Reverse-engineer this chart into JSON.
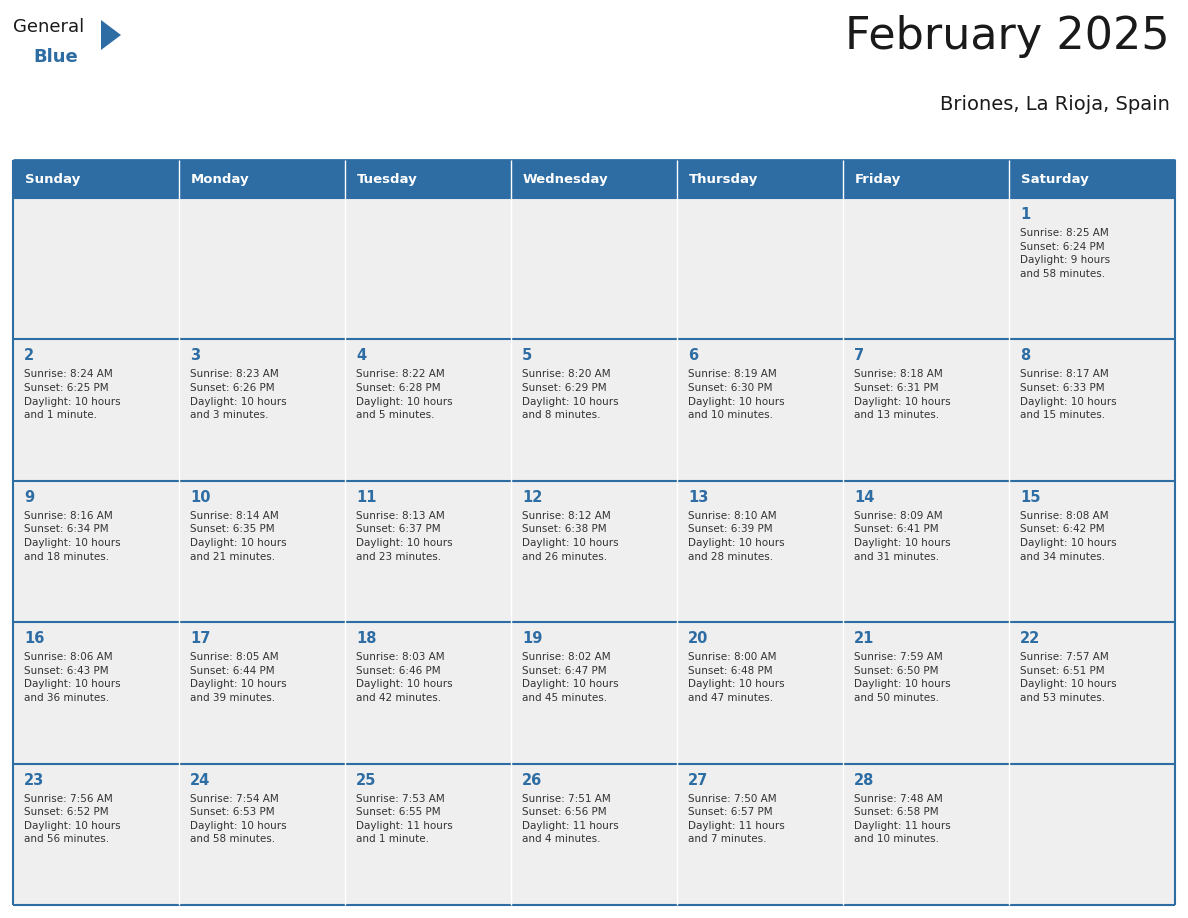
{
  "title": "February 2025",
  "subtitle": "Briones, La Rioja, Spain",
  "header_bg": "#2E6DA4",
  "header_text_color": "#FFFFFF",
  "cell_bg": "#EFEFEF",
  "border_color": "#2E6DA4",
  "title_color": "#1a1a1a",
  "day_number_color": "#2E6DA4",
  "cell_text_color": "#333333",
  "days_of_week": [
    "Sunday",
    "Monday",
    "Tuesday",
    "Wednesday",
    "Thursday",
    "Friday",
    "Saturday"
  ],
  "weeks": [
    [
      {
        "day": null,
        "text": ""
      },
      {
        "day": null,
        "text": ""
      },
      {
        "day": null,
        "text": ""
      },
      {
        "day": null,
        "text": ""
      },
      {
        "day": null,
        "text": ""
      },
      {
        "day": null,
        "text": ""
      },
      {
        "day": 1,
        "text": "Sunrise: 8:25 AM\nSunset: 6:24 PM\nDaylight: 9 hours\nand 58 minutes."
      }
    ],
    [
      {
        "day": 2,
        "text": "Sunrise: 8:24 AM\nSunset: 6:25 PM\nDaylight: 10 hours\nand 1 minute."
      },
      {
        "day": 3,
        "text": "Sunrise: 8:23 AM\nSunset: 6:26 PM\nDaylight: 10 hours\nand 3 minutes."
      },
      {
        "day": 4,
        "text": "Sunrise: 8:22 AM\nSunset: 6:28 PM\nDaylight: 10 hours\nand 5 minutes."
      },
      {
        "day": 5,
        "text": "Sunrise: 8:20 AM\nSunset: 6:29 PM\nDaylight: 10 hours\nand 8 minutes."
      },
      {
        "day": 6,
        "text": "Sunrise: 8:19 AM\nSunset: 6:30 PM\nDaylight: 10 hours\nand 10 minutes."
      },
      {
        "day": 7,
        "text": "Sunrise: 8:18 AM\nSunset: 6:31 PM\nDaylight: 10 hours\nand 13 minutes."
      },
      {
        "day": 8,
        "text": "Sunrise: 8:17 AM\nSunset: 6:33 PM\nDaylight: 10 hours\nand 15 minutes."
      }
    ],
    [
      {
        "day": 9,
        "text": "Sunrise: 8:16 AM\nSunset: 6:34 PM\nDaylight: 10 hours\nand 18 minutes."
      },
      {
        "day": 10,
        "text": "Sunrise: 8:14 AM\nSunset: 6:35 PM\nDaylight: 10 hours\nand 21 minutes."
      },
      {
        "day": 11,
        "text": "Sunrise: 8:13 AM\nSunset: 6:37 PM\nDaylight: 10 hours\nand 23 minutes."
      },
      {
        "day": 12,
        "text": "Sunrise: 8:12 AM\nSunset: 6:38 PM\nDaylight: 10 hours\nand 26 minutes."
      },
      {
        "day": 13,
        "text": "Sunrise: 8:10 AM\nSunset: 6:39 PM\nDaylight: 10 hours\nand 28 minutes."
      },
      {
        "day": 14,
        "text": "Sunrise: 8:09 AM\nSunset: 6:41 PM\nDaylight: 10 hours\nand 31 minutes."
      },
      {
        "day": 15,
        "text": "Sunrise: 8:08 AM\nSunset: 6:42 PM\nDaylight: 10 hours\nand 34 minutes."
      }
    ],
    [
      {
        "day": 16,
        "text": "Sunrise: 8:06 AM\nSunset: 6:43 PM\nDaylight: 10 hours\nand 36 minutes."
      },
      {
        "day": 17,
        "text": "Sunrise: 8:05 AM\nSunset: 6:44 PM\nDaylight: 10 hours\nand 39 minutes."
      },
      {
        "day": 18,
        "text": "Sunrise: 8:03 AM\nSunset: 6:46 PM\nDaylight: 10 hours\nand 42 minutes."
      },
      {
        "day": 19,
        "text": "Sunrise: 8:02 AM\nSunset: 6:47 PM\nDaylight: 10 hours\nand 45 minutes."
      },
      {
        "day": 20,
        "text": "Sunrise: 8:00 AM\nSunset: 6:48 PM\nDaylight: 10 hours\nand 47 minutes."
      },
      {
        "day": 21,
        "text": "Sunrise: 7:59 AM\nSunset: 6:50 PM\nDaylight: 10 hours\nand 50 minutes."
      },
      {
        "day": 22,
        "text": "Sunrise: 7:57 AM\nSunset: 6:51 PM\nDaylight: 10 hours\nand 53 minutes."
      }
    ],
    [
      {
        "day": 23,
        "text": "Sunrise: 7:56 AM\nSunset: 6:52 PM\nDaylight: 10 hours\nand 56 minutes."
      },
      {
        "day": 24,
        "text": "Sunrise: 7:54 AM\nSunset: 6:53 PM\nDaylight: 10 hours\nand 58 minutes."
      },
      {
        "day": 25,
        "text": "Sunrise: 7:53 AM\nSunset: 6:55 PM\nDaylight: 11 hours\nand 1 minute."
      },
      {
        "day": 26,
        "text": "Sunrise: 7:51 AM\nSunset: 6:56 PM\nDaylight: 11 hours\nand 4 minutes."
      },
      {
        "day": 27,
        "text": "Sunrise: 7:50 AM\nSunset: 6:57 PM\nDaylight: 11 hours\nand 7 minutes."
      },
      {
        "day": 28,
        "text": "Sunrise: 7:48 AM\nSunset: 6:58 PM\nDaylight: 11 hours\nand 10 minutes."
      },
      {
        "day": null,
        "text": ""
      }
    ]
  ],
  "logo_general_color": "#1a1a1a",
  "logo_blue_color": "#2E6DA4",
  "triangle_color": "#2E6DA4",
  "fig_width": 11.88,
  "fig_height": 9.18,
  "dpi": 100
}
